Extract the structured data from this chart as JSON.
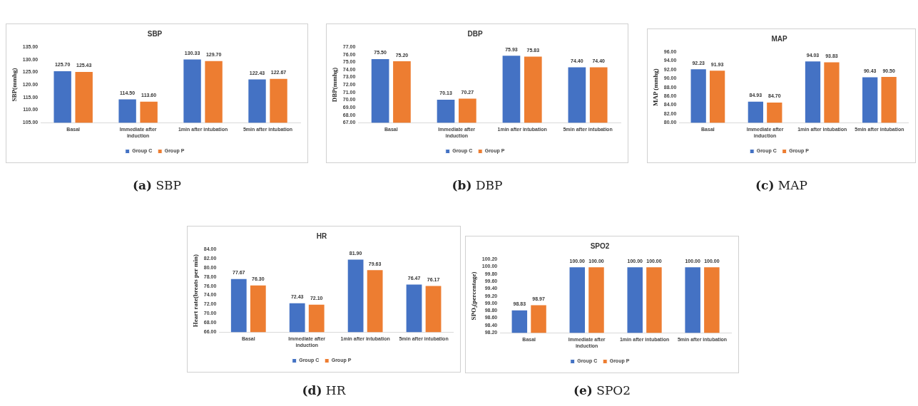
{
  "chart_data": [
    {
      "type": "bar",
      "title": "SBP",
      "ylabel": "SBP(mmhg)",
      "categories": [
        "Basal",
        "Immediate after induction",
        "1min after intubation",
        "5min after intubation"
      ],
      "series": [
        {
          "name": "Group C",
          "color": "#4472c4",
          "values": [
            125.7,
            114.5,
            130.33,
            122.43
          ],
          "value_labels": [
            "125.70",
            "114.50",
            "130.33",
            "122.43"
          ]
        },
        {
          "name": "Group P",
          "color": "#ed7d31",
          "values": [
            125.43,
            113.6,
            129.7,
            122.67
          ],
          "value_labels": [
            "125.43",
            "113.60",
            "129.70",
            "122.67"
          ]
        }
      ],
      "ylim": [
        105,
        135
      ],
      "yticks": [
        {
          "value": 105,
          "label": "105.00"
        },
        {
          "value": 110,
          "label": "110.00"
        },
        {
          "value": 115,
          "label": "115.00"
        },
        {
          "value": 120,
          "label": "120.00"
        },
        {
          "value": 125,
          "label": "125.00"
        },
        {
          "value": 130,
          "label": "130.00"
        },
        {
          "value": 135,
          "label": "135.00"
        }
      ],
      "legend": "bottom",
      "grid": false,
      "annotations": [
        "(a) SBP"
      ]
    },
    {
      "type": "bar",
      "title": "DBP",
      "ylabel": "DBP(mmhg)",
      "categories": [
        "Basal",
        "Immediate after induction",
        "1min after intubation",
        "5min after intubation"
      ],
      "series": [
        {
          "name": "Group C",
          "color": "#4472c4",
          "values": [
            75.5,
            70.13,
            75.93,
            74.4
          ],
          "value_labels": [
            "75.50",
            "70.13",
            "75.93",
            "74.40"
          ]
        },
        {
          "name": "Group P",
          "color": "#ed7d31",
          "values": [
            75.2,
            70.27,
            75.83,
            74.4
          ],
          "value_labels": [
            "75.20",
            "70.27",
            "75.83",
            "74.40"
          ]
        }
      ],
      "ylim": [
        67,
        77
      ],
      "yticks": [
        {
          "value": 67,
          "label": "67.00"
        },
        {
          "value": 68,
          "label": "68.00"
        },
        {
          "value": 69,
          "label": "69.00"
        },
        {
          "value": 70,
          "label": "70.00"
        },
        {
          "value": 71,
          "label": "71.00"
        },
        {
          "value": 72,
          "label": "72.00"
        },
        {
          "value": 73,
          "label": "73.00"
        },
        {
          "value": 74,
          "label": "74.00"
        },
        {
          "value": 75,
          "label": "75.00"
        },
        {
          "value": 76,
          "label": "76.00"
        },
        {
          "value": 77,
          "label": "77.00"
        }
      ],
      "legend": "bottom",
      "grid": false,
      "annotations": [
        "(b) DBP"
      ]
    },
    {
      "type": "bar",
      "title": "MAP",
      "ylabel": "MAP (mmhg)",
      "categories": [
        "Basal",
        "Immediate after induction",
        "1min after intubation",
        "5min after intubation"
      ],
      "series": [
        {
          "name": "Group C",
          "color": "#4472c4",
          "values": [
            92.23,
            84.93,
            94.03,
            90.43
          ],
          "value_labels": [
            "92.23",
            "84.93",
            "94.03",
            "90.43"
          ]
        },
        {
          "name": "Group P",
          "color": "#ed7d31",
          "values": [
            91.93,
            84.7,
            93.83,
            90.5
          ],
          "value_labels": [
            "91.93",
            "84.70",
            "93.83",
            "90.50"
          ]
        }
      ],
      "ylim": [
        80,
        96
      ],
      "yticks": [
        {
          "value": 80,
          "label": "80.00"
        },
        {
          "value": 82,
          "label": "82.00"
        },
        {
          "value": 84,
          "label": "84.00"
        },
        {
          "value": 86,
          "label": "86.00"
        },
        {
          "value": 88,
          "label": "88.00"
        },
        {
          "value": 90,
          "label": "90.00"
        },
        {
          "value": 92,
          "label": "92.00"
        },
        {
          "value": 94,
          "label": "94.00"
        },
        {
          "value": 96,
          "label": "96.00"
        }
      ],
      "legend": "bottom",
      "grid": false,
      "annotations": [
        "(c) MAP"
      ]
    },
    {
      "type": "bar",
      "title": "HR",
      "ylabel": "Heart rate(breats per min)",
      "categories": [
        "Basal",
        "Immediate after induction",
        "1min after intubation",
        "5min after intubation"
      ],
      "series": [
        {
          "name": "Group C",
          "color": "#4472c4",
          "values": [
            77.67,
            72.43,
            81.9,
            76.47
          ],
          "value_labels": [
            "77.67",
            "72.43",
            "81.90",
            "76.47"
          ]
        },
        {
          "name": "Group P",
          "color": "#ed7d31",
          "values": [
            76.3,
            72.1,
            79.63,
            76.17
          ],
          "value_labels": [
            "76.30",
            "72.10",
            "79.63",
            "76.17"
          ]
        }
      ],
      "ylim": [
        66,
        84
      ],
      "yticks": [
        {
          "value": 66,
          "label": "66.00"
        },
        {
          "value": 68,
          "label": "68.00"
        },
        {
          "value": 70,
          "label": "70.00"
        },
        {
          "value": 72,
          "label": "72.00"
        },
        {
          "value": 74,
          "label": "74.00"
        },
        {
          "value": 76,
          "label": "76.00"
        },
        {
          "value": 78,
          "label": "78.00"
        },
        {
          "value": 80,
          "label": "80.00"
        },
        {
          "value": 82,
          "label": "82.00"
        },
        {
          "value": 84,
          "label": "84.00"
        }
      ],
      "legend": "bottom",
      "grid": false,
      "annotations": [
        "(d) HR"
      ]
    },
    {
      "type": "bar",
      "title": "SPO2",
      "ylabel": "SPO₂(percentage)",
      "categories": [
        "Basal",
        "Immediate after induction",
        "1min after intubation",
        "5min after intubation"
      ],
      "series": [
        {
          "name": "Group C",
          "color": "#4472c4",
          "values": [
            98.83,
            100.0,
            100.0,
            100.0
          ],
          "value_labels": [
            "98.83",
            "100.00",
            "100.00",
            "100.00"
          ]
        },
        {
          "name": "Group P",
          "color": "#ed7d31",
          "values": [
            98.97,
            100.0,
            100.0,
            100.0
          ],
          "value_labels": [
            "98.97",
            "100.00",
            "100.00",
            "100.00"
          ]
        }
      ],
      "ylim": [
        98.2,
        100.2
      ],
      "yticks": [
        {
          "value": 98.2,
          "label": "98.20"
        },
        {
          "value": 98.4,
          "label": "98.40"
        },
        {
          "value": 98.6,
          "label": "98.60"
        },
        {
          "value": 98.8,
          "label": "98.80"
        },
        {
          "value": 99,
          "label": "99.00"
        },
        {
          "value": 99.2,
          "label": "99.20"
        },
        {
          "value": 99.4,
          "label": "99.40"
        },
        {
          "value": 99.6,
          "label": "99.60"
        },
        {
          "value": 99.8,
          "label": "99.80"
        },
        {
          "value": 100,
          "label": "100.00"
        },
        {
          "value": 100.2,
          "label": "100.20"
        }
      ],
      "legend": "bottom",
      "grid": false,
      "annotations": [
        "(e) SPO2"
      ]
    }
  ]
}
